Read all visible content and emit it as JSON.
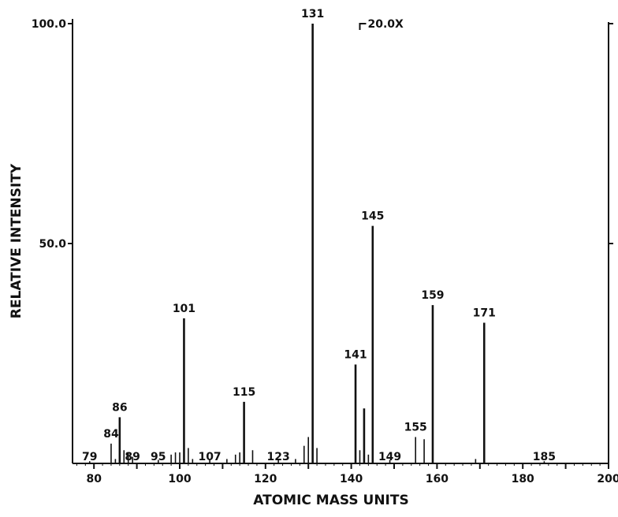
{
  "chart_data": {
    "type": "bar",
    "title": "",
    "xlabel": "ATOMIC MASS UNITS",
    "ylabel": "RELATIVE INTENSITY",
    "xlim": [
      75,
      200
    ],
    "ylim": [
      0,
      100
    ],
    "x_ticks": [
      80,
      100,
      120,
      140,
      160,
      180,
      200
    ],
    "x_tick_labels": [
      "80",
      "100",
      "120",
      "140",
      "160",
      "180",
      "200"
    ],
    "y_ticks": [
      50,
      100
    ],
    "y_tick_labels": [
      "50.0",
      "100.0"
    ],
    "annotation": "20.0X",
    "annotation_x": 142,
    "grid": false,
    "peaks": [
      {
        "x": 79,
        "y": 0.5,
        "label": "79"
      },
      {
        "x": 84,
        "y": 4.5,
        "label": "84"
      },
      {
        "x": 85,
        "y": 1.0,
        "label": ""
      },
      {
        "x": 86,
        "y": 10.5,
        "label": "86"
      },
      {
        "x": 87,
        "y": 3.0,
        "label": ""
      },
      {
        "x": 88,
        "y": 2.5,
        "label": ""
      },
      {
        "x": 89,
        "y": 1.5,
        "label": "89"
      },
      {
        "x": 95,
        "y": 0.8,
        "label": "95"
      },
      {
        "x": 98,
        "y": 2.0,
        "label": ""
      },
      {
        "x": 99,
        "y": 2.5,
        "label": ""
      },
      {
        "x": 100,
        "y": 2.5,
        "label": ""
      },
      {
        "x": 101,
        "y": 33.0,
        "label": "101"
      },
      {
        "x": 102,
        "y": 3.5,
        "label": ""
      },
      {
        "x": 103,
        "y": 1.0,
        "label": ""
      },
      {
        "x": 107,
        "y": 1.0,
        "label": "107"
      },
      {
        "x": 111,
        "y": 1.0,
        "label": ""
      },
      {
        "x": 113,
        "y": 2.0,
        "label": ""
      },
      {
        "x": 114,
        "y": 2.5,
        "label": ""
      },
      {
        "x": 115,
        "y": 14.0,
        "label": "115"
      },
      {
        "x": 117,
        "y": 3.0,
        "label": ""
      },
      {
        "x": 123,
        "y": 0.8,
        "label": "123"
      },
      {
        "x": 127,
        "y": 1.0,
        "label": ""
      },
      {
        "x": 129,
        "y": 4.0,
        "label": ""
      },
      {
        "x": 130,
        "y": 6.0,
        "label": ""
      },
      {
        "x": 131,
        "y": 100.0,
        "label": "131"
      },
      {
        "x": 132,
        "y": 3.5,
        "label": ""
      },
      {
        "x": 141,
        "y": 22.5,
        "label": "141"
      },
      {
        "x": 142,
        "y": 3.0,
        "label": ""
      },
      {
        "x": 143,
        "y": 12.5,
        "label": ""
      },
      {
        "x": 144,
        "y": 2.0,
        "label": ""
      },
      {
        "x": 145,
        "y": 54.0,
        "label": "145"
      },
      {
        "x": 149,
        "y": 0.8,
        "label": "149"
      },
      {
        "x": 155,
        "y": 6.0,
        "label": "155"
      },
      {
        "x": 157,
        "y": 5.5,
        "label": ""
      },
      {
        "x": 159,
        "y": 36.0,
        "label": "159"
      },
      {
        "x": 169,
        "y": 1.0,
        "label": ""
      },
      {
        "x": 171,
        "y": 32.0,
        "label": "171"
      },
      {
        "x": 185,
        "y": 0.5,
        "label": "185"
      }
    ]
  }
}
